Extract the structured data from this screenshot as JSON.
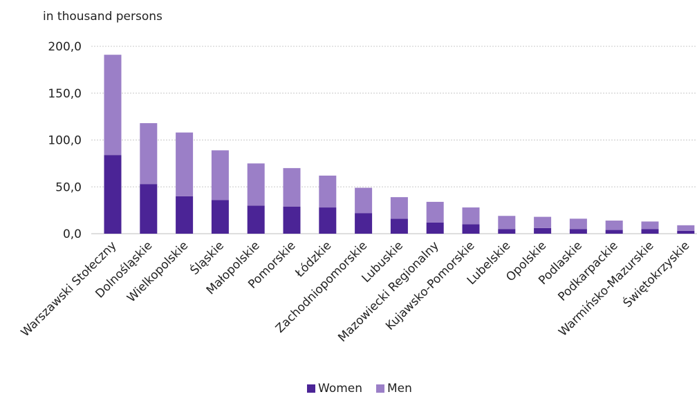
{
  "chart_data": {
    "type": "bar",
    "stacked": true,
    "unit_label": "in thousand persons",
    "categories": [
      "Warszawski Stołeczny",
      "Dolnośląskie",
      "Wielkopolskie",
      "Śląskie",
      "Małopolskie",
      "Pomorskie",
      "Łódzkie",
      "Zachodniopomorskie",
      "Lubuskie",
      "Mazowiecki Regionalny",
      "Kujawsko-Pomorskie",
      "Lubelskie",
      "Opolskie",
      "Podlaskie",
      "Podkarpackie",
      "Warmińsko-Mazurskie",
      "Świętokrzyskie"
    ],
    "series": [
      {
        "name": "Women",
        "color": "#4b2496",
        "values": [
          84,
          53,
          40,
          36,
          30,
          29,
          28,
          22,
          16,
          12,
          10,
          5,
          6,
          5,
          4,
          5,
          3
        ]
      },
      {
        "name": "Men",
        "color": "#9b7fc7",
        "values": [
          107,
          65,
          68,
          53,
          45,
          41,
          34,
          27,
          23,
          22,
          18,
          14,
          12,
          11,
          10,
          8,
          6
        ]
      }
    ],
    "yticks": [
      "0,0",
      "50,0",
      "100,0",
      "150,0",
      "200,0"
    ],
    "ylim": [
      0,
      200
    ],
    "grid": true,
    "legend_position": "bottom"
  }
}
